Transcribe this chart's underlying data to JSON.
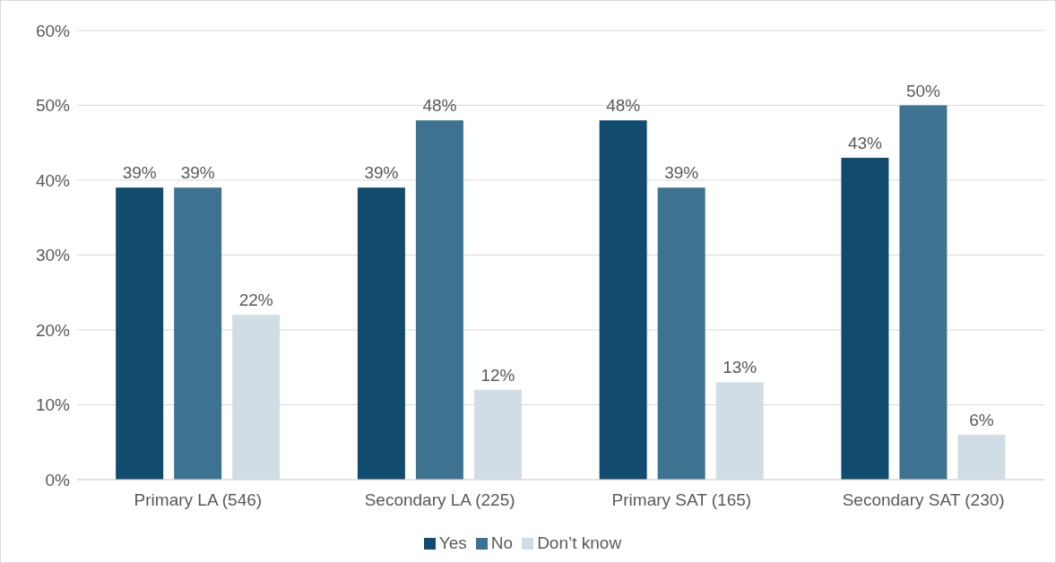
{
  "chart_data": {
    "type": "bar",
    "categories": [
      "Primary LA (546)",
      "Secondary LA (225)",
      "Primary SAT (165)",
      "Secondary SAT (230)"
    ],
    "series": [
      {
        "name": "Yes",
        "color": "#114b6e",
        "values": [
          39,
          39,
          48,
          43
        ],
        "value_labels": [
          "39%",
          "39%",
          "48%",
          "43%"
        ]
      },
      {
        "name": "No",
        "color": "#3e7291",
        "values": [
          39,
          48,
          39,
          50
        ],
        "value_labels": [
          "39%",
          "48%",
          "39%",
          "50%"
        ]
      },
      {
        "name": "Don’t know",
        "color": "#d0dde5",
        "values": [
          22,
          12,
          13,
          6
        ],
        "value_labels": [
          "22%",
          "12%",
          "13%",
          "6%"
        ]
      }
    ],
    "ylim": [
      0,
      60
    ],
    "yticks": [
      {
        "value": 0,
        "label": "0%"
      },
      {
        "value": 10,
        "label": "10%"
      },
      {
        "value": 20,
        "label": "20%"
      },
      {
        "value": 30,
        "label": "30%"
      },
      {
        "value": 40,
        "label": "40%"
      },
      {
        "value": 50,
        "label": "50%"
      },
      {
        "value": 60,
        "label": "60%"
      }
    ],
    "grid": "y",
    "legend": "bottom"
  }
}
